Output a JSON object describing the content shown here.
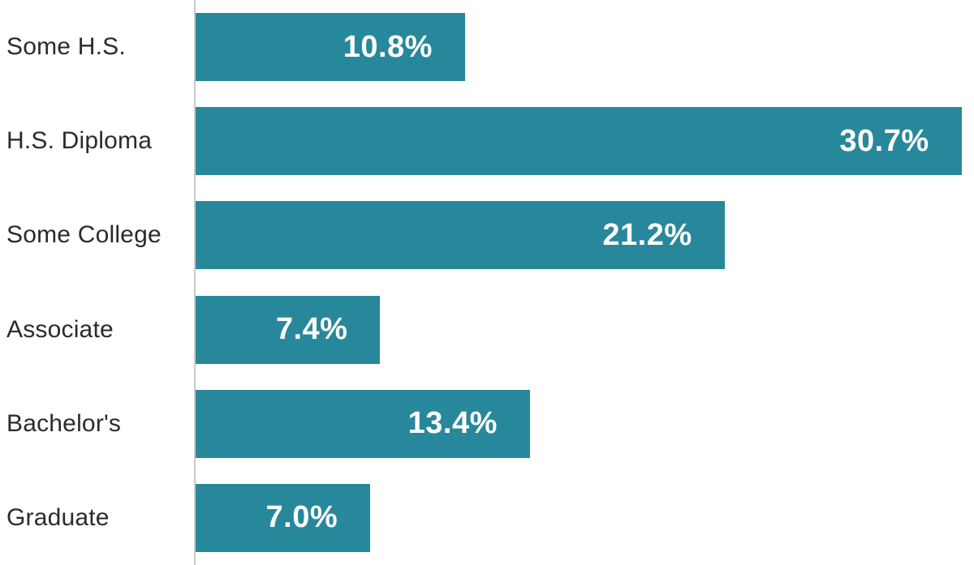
{
  "chart_data": {
    "type": "bar",
    "orientation": "horizontal",
    "title": "",
    "xlabel": "",
    "ylabel": "",
    "categories": [
      "Some H.S.",
      "H.S. Diploma",
      "Some College",
      "Associate",
      "Bachelor's",
      "Graduate"
    ],
    "values": [
      10.8,
      30.7,
      21.2,
      7.4,
      13.4,
      7.0
    ],
    "value_labels": [
      "10.8%",
      "30.7%",
      "21.2%",
      "7.4%",
      "13.4%",
      "7.0%"
    ],
    "xlim": [
      0,
      31.2
    ],
    "grid": false,
    "legend": false,
    "bar_color": "#28889b",
    "value_label_color": "#ffffff",
    "category_label_color": "#2b2b2b",
    "axis_line_color": "#c9c9c9"
  }
}
